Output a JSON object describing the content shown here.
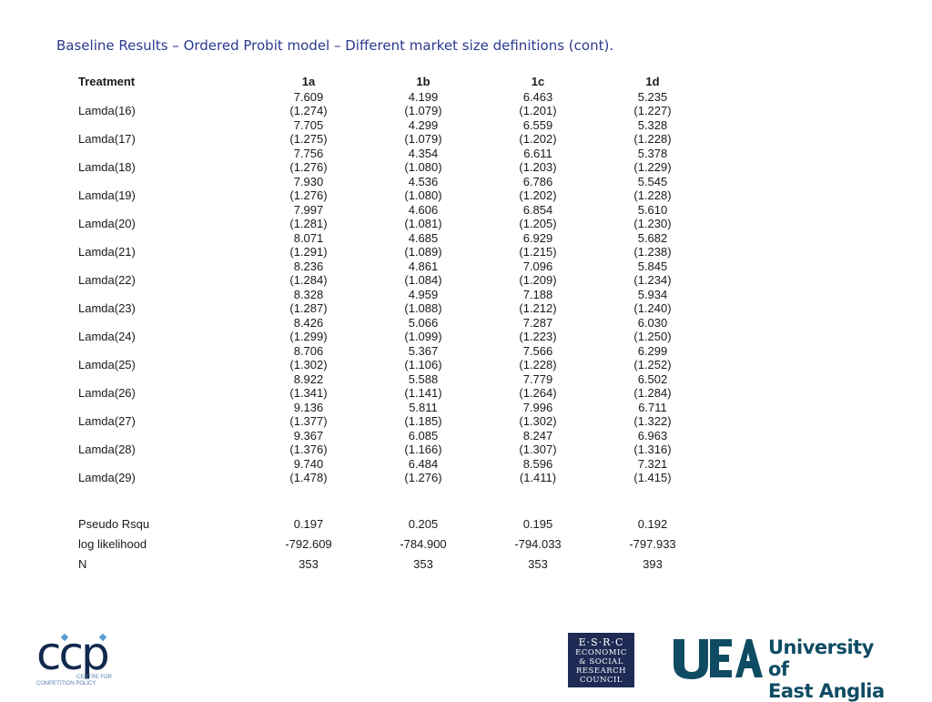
{
  "title": "Baseline Results – Ordered Probit model – Different market size definitions (cont).",
  "table": {
    "header": {
      "label": "Treatment",
      "columns": [
        "1a",
        "1b",
        "1c",
        "1d"
      ]
    },
    "lamdas": [
      {
        "label": "Lamda(16)",
        "coef": [
          "7.609",
          "4.199",
          "6.463",
          "5.235"
        ],
        "se": [
          "(1.274)",
          "(1.079)",
          "(1.201)",
          "(1.227)"
        ]
      },
      {
        "label": "Lamda(17)",
        "coef": [
          "7.705",
          "4.299",
          "6.559",
          "5.328"
        ],
        "se": [
          "(1.275)",
          "(1.079)",
          "(1.202)",
          "(1.228)"
        ]
      },
      {
        "label": "Lamda(18)",
        "coef": [
          "7.756",
          "4.354",
          "6.611",
          "5.378"
        ],
        "se": [
          "(1.276)",
          "(1.080)",
          "(1.203)",
          "(1.229)"
        ]
      },
      {
        "label": "Lamda(19)",
        "coef": [
          "7.930",
          "4.536",
          "6.786",
          "5.545"
        ],
        "se": [
          "(1.276)",
          "(1.080)",
          "(1.202)",
          "(1.228)"
        ]
      },
      {
        "label": "Lamda(20)",
        "coef": [
          "7.997",
          "4.606",
          "6.854",
          "5.610"
        ],
        "se": [
          "(1.281)",
          "(1.081)",
          "(1.205)",
          "(1.230)"
        ]
      },
      {
        "label": "Lamda(21)",
        "coef": [
          "8.071",
          "4.685",
          "6.929",
          "5.682"
        ],
        "se": [
          "(1.291)",
          "(1.089)",
          "(1.215)",
          "(1.238)"
        ]
      },
      {
        "label": "Lamda(22)",
        "coef": [
          "8.236",
          "4.861",
          "7.096",
          "5.845"
        ],
        "se": [
          "(1.284)",
          "(1.084)",
          "(1.209)",
          "(1.234)"
        ]
      },
      {
        "label": "Lamda(23)",
        "coef": [
          "8.328",
          "4.959",
          "7.188",
          "5.934"
        ],
        "se": [
          "(1.287)",
          "(1.088)",
          "(1.212)",
          "(1.240)"
        ]
      },
      {
        "label": "Lamda(24)",
        "coef": [
          "8.426",
          "5.066",
          "7.287",
          "6.030"
        ],
        "se": [
          "(1.299)",
          "(1.099)",
          "(1.223)",
          "(1.250)"
        ]
      },
      {
        "label": "Lamda(25)",
        "coef": [
          "8.706",
          "5.367",
          "7.566",
          "6.299"
        ],
        "se": [
          "(1.302)",
          "(1.106)",
          "(1.228)",
          "(1.252)"
        ]
      },
      {
        "label": "Lamda(26)",
        "coef": [
          "8.922",
          "5.588",
          "7.779",
          "6.502"
        ],
        "se": [
          "(1.341)",
          "(1.141)",
          "(1.264)",
          "(1.284)"
        ]
      },
      {
        "label": "Lamda(27)",
        "coef": [
          "9.136",
          "5.811",
          "7.996",
          "6.711"
        ],
        "se": [
          "(1.377)",
          "(1.185)",
          "(1.302)",
          "(1.322)"
        ]
      },
      {
        "label": "Lamda(28)",
        "coef": [
          "9.367",
          "6.085",
          "8.247",
          "6.963"
        ],
        "se": [
          "(1.376)",
          "(1.166)",
          "(1.307)",
          "(1.316)"
        ]
      },
      {
        "label": "Lamda(29)",
        "coef": [
          "9.740",
          "6.484",
          "8.596",
          "7.321"
        ],
        "se": [
          "(1.478)",
          "(1.276)",
          "(1.411)",
          "(1.415)"
        ]
      }
    ],
    "stats": [
      {
        "label": "Pseudo Rsqu",
        "values": [
          "0.197",
          "0.205",
          "0.195",
          "0.192"
        ]
      },
      {
        "label": "log likelihood",
        "values": [
          "-792.609",
          "-784.900",
          "-794.033",
          "-797.933"
        ]
      },
      {
        "label": "N",
        "values": [
          "353",
          "353",
          "353",
          "393"
        ]
      }
    ]
  },
  "logos": {
    "ccp": {
      "letters": "ccp",
      "sub_line1": "CENTRE FOR",
      "sub_line2": "COMPETITION POLICY",
      "color": "#12294f"
    },
    "esrc": {
      "line1": "E·S·R·C",
      "line2": "ECONOMIC",
      "line3": "& SOCIAL",
      "line4": "RESEARCH",
      "line5": "COUNCIL",
      "color": "#1d2b55"
    },
    "uea": {
      "line1": "University of",
      "line2": "East Anglia",
      "color": "#0f4c63"
    }
  }
}
